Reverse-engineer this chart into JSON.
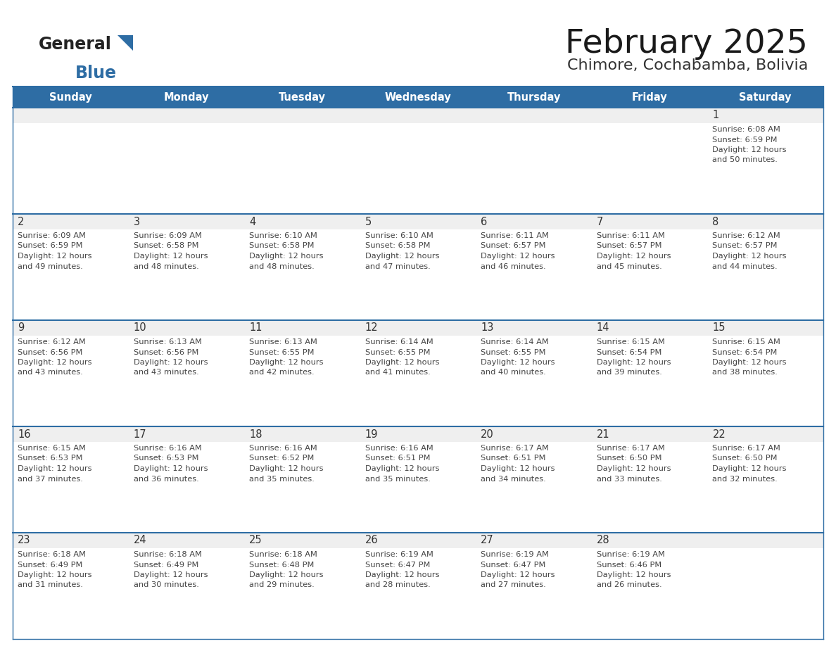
{
  "title": "February 2025",
  "subtitle": "Chimore, Cochabamba, Bolivia",
  "header_bg": "#2E6DA4",
  "header_text": "#FFFFFF",
  "cell_bg_gray": "#EFEFEF",
  "cell_bg_white": "#FFFFFF",
  "grid_line_color": "#2E6DA4",
  "text_color": "#444444",
  "day_num_color": "#333333",
  "logo_black": "#222222",
  "logo_blue": "#2E6DA4",
  "days_of_week": [
    "Sunday",
    "Monday",
    "Tuesday",
    "Wednesday",
    "Thursday",
    "Friday",
    "Saturday"
  ],
  "calendar_data": [
    [
      null,
      null,
      null,
      null,
      null,
      null,
      {
        "day": 1,
        "sunrise": "6:08 AM",
        "sunset": "6:59 PM",
        "daylight_h": "12 hours",
        "daylight_m": "and 50 minutes."
      }
    ],
    [
      {
        "day": 2,
        "sunrise": "6:09 AM",
        "sunset": "6:59 PM",
        "daylight_h": "12 hours",
        "daylight_m": "and 49 minutes."
      },
      {
        "day": 3,
        "sunrise": "6:09 AM",
        "sunset": "6:58 PM",
        "daylight_h": "12 hours",
        "daylight_m": "and 48 minutes."
      },
      {
        "day": 4,
        "sunrise": "6:10 AM",
        "sunset": "6:58 PM",
        "daylight_h": "12 hours",
        "daylight_m": "and 48 minutes."
      },
      {
        "day": 5,
        "sunrise": "6:10 AM",
        "sunset": "6:58 PM",
        "daylight_h": "12 hours",
        "daylight_m": "and 47 minutes."
      },
      {
        "day": 6,
        "sunrise": "6:11 AM",
        "sunset": "6:57 PM",
        "daylight_h": "12 hours",
        "daylight_m": "and 46 minutes."
      },
      {
        "day": 7,
        "sunrise": "6:11 AM",
        "sunset": "6:57 PM",
        "daylight_h": "12 hours",
        "daylight_m": "and 45 minutes."
      },
      {
        "day": 8,
        "sunrise": "6:12 AM",
        "sunset": "6:57 PM",
        "daylight_h": "12 hours",
        "daylight_m": "and 44 minutes."
      }
    ],
    [
      {
        "day": 9,
        "sunrise": "6:12 AM",
        "sunset": "6:56 PM",
        "daylight_h": "12 hours",
        "daylight_m": "and 43 minutes."
      },
      {
        "day": 10,
        "sunrise": "6:13 AM",
        "sunset": "6:56 PM",
        "daylight_h": "12 hours",
        "daylight_m": "and 43 minutes."
      },
      {
        "day": 11,
        "sunrise": "6:13 AM",
        "sunset": "6:55 PM",
        "daylight_h": "12 hours",
        "daylight_m": "and 42 minutes."
      },
      {
        "day": 12,
        "sunrise": "6:14 AM",
        "sunset": "6:55 PM",
        "daylight_h": "12 hours",
        "daylight_m": "and 41 minutes."
      },
      {
        "day": 13,
        "sunrise": "6:14 AM",
        "sunset": "6:55 PM",
        "daylight_h": "12 hours",
        "daylight_m": "and 40 minutes."
      },
      {
        "day": 14,
        "sunrise": "6:15 AM",
        "sunset": "6:54 PM",
        "daylight_h": "12 hours",
        "daylight_m": "and 39 minutes."
      },
      {
        "day": 15,
        "sunrise": "6:15 AM",
        "sunset": "6:54 PM",
        "daylight_h": "12 hours",
        "daylight_m": "and 38 minutes."
      }
    ],
    [
      {
        "day": 16,
        "sunrise": "6:15 AM",
        "sunset": "6:53 PM",
        "daylight_h": "12 hours",
        "daylight_m": "and 37 minutes."
      },
      {
        "day": 17,
        "sunrise": "6:16 AM",
        "sunset": "6:53 PM",
        "daylight_h": "12 hours",
        "daylight_m": "and 36 minutes."
      },
      {
        "day": 18,
        "sunrise": "6:16 AM",
        "sunset": "6:52 PM",
        "daylight_h": "12 hours",
        "daylight_m": "and 35 minutes."
      },
      {
        "day": 19,
        "sunrise": "6:16 AM",
        "sunset": "6:51 PM",
        "daylight_h": "12 hours",
        "daylight_m": "and 35 minutes."
      },
      {
        "day": 20,
        "sunrise": "6:17 AM",
        "sunset": "6:51 PM",
        "daylight_h": "12 hours",
        "daylight_m": "and 34 minutes."
      },
      {
        "day": 21,
        "sunrise": "6:17 AM",
        "sunset": "6:50 PM",
        "daylight_h": "12 hours",
        "daylight_m": "and 33 minutes."
      },
      {
        "day": 22,
        "sunrise": "6:17 AM",
        "sunset": "6:50 PM",
        "daylight_h": "12 hours",
        "daylight_m": "and 32 minutes."
      }
    ],
    [
      {
        "day": 23,
        "sunrise": "6:18 AM",
        "sunset": "6:49 PM",
        "daylight_h": "12 hours",
        "daylight_m": "and 31 minutes."
      },
      {
        "day": 24,
        "sunrise": "6:18 AM",
        "sunset": "6:49 PM",
        "daylight_h": "12 hours",
        "daylight_m": "and 30 minutes."
      },
      {
        "day": 25,
        "sunrise": "6:18 AM",
        "sunset": "6:48 PM",
        "daylight_h": "12 hours",
        "daylight_m": "and 29 minutes."
      },
      {
        "day": 26,
        "sunrise": "6:19 AM",
        "sunset": "6:47 PM",
        "daylight_h": "12 hours",
        "daylight_m": "and 28 minutes."
      },
      {
        "day": 27,
        "sunrise": "6:19 AM",
        "sunset": "6:47 PM",
        "daylight_h": "12 hours",
        "daylight_m": "and 27 minutes."
      },
      {
        "day": 28,
        "sunrise": "6:19 AM",
        "sunset": "6:46 PM",
        "daylight_h": "12 hours",
        "daylight_m": "and 26 minutes."
      },
      null
    ]
  ]
}
